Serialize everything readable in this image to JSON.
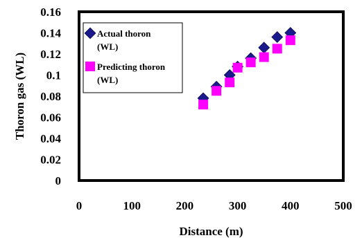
{
  "chart_data": {
    "type": "scatter",
    "xlabel": "Distance (m)",
    "ylabel": "Thoron gas (WL)",
    "xlim": [
      0,
      500
    ],
    "ylim": [
      0,
      0.16
    ],
    "x_ticks": [
      "0",
      "100",
      "200",
      "300",
      "400",
      "500"
    ],
    "y_ticks": [
      "0",
      "0.02",
      "0.04",
      "0.06",
      "0.08",
      "0.1",
      "0.12",
      "0.14",
      "0.16"
    ],
    "grid": false,
    "legend_position": "top-left",
    "series": [
      {
        "name": "Actual thoron (WL)",
        "legend_lines": [
          "Actual thoron",
          "(WL)"
        ],
        "marker": "diamond",
        "color": "#1a1a8c",
        "x": [
          235,
          260,
          285,
          300,
          325,
          350,
          375,
          400
        ],
        "y": [
          0.078,
          0.089,
          0.1,
          0.108,
          0.116,
          0.126,
          0.136,
          0.14
        ]
      },
      {
        "name": "Predicting thoron (WL)",
        "legend_lines": [
          "Predicting thoron",
          "(WL)"
        ],
        "marker": "square",
        "color": "#ff00ff",
        "x": [
          235,
          260,
          285,
          300,
          325,
          350,
          375,
          400
        ],
        "y": [
          0.072,
          0.085,
          0.093,
          0.107,
          0.112,
          0.117,
          0.125,
          0.133
        ]
      }
    ]
  }
}
